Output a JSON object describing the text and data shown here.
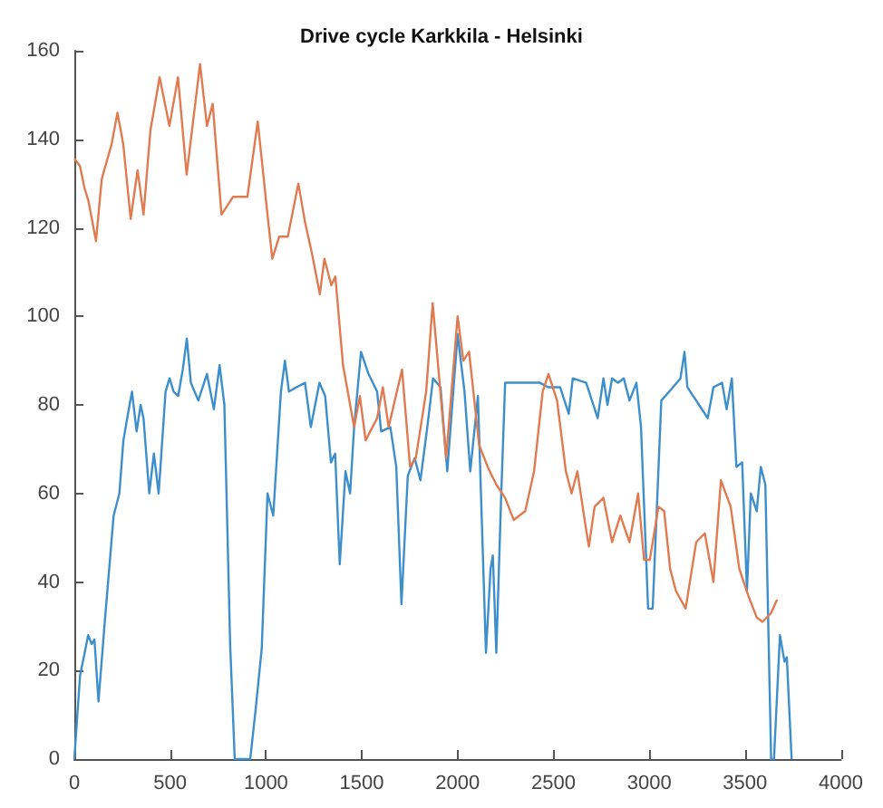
{
  "chart_data": {
    "type": "line",
    "title": "Drive cycle Karkkila - Helsinki",
    "xlim": [
      0,
      4000
    ],
    "xticks": [
      0,
      500,
      1000,
      1500,
      2000,
      2500,
      3000,
      3500,
      4000
    ],
    "ylim": [
      0,
      160
    ],
    "yticks": [
      0,
      20,
      40,
      60,
      80,
      100,
      120,
      140,
      160
    ],
    "grid": false,
    "marker": "none",
    "line_style": "solid",
    "series": [
      {
        "color": "#3d8fcc",
        "x": [
          0,
          30,
          54,
          72,
          90,
          105,
          126,
          157,
          205,
          235,
          256,
          280,
          301,
          325,
          346,
          361,
          391,
          415,
          440,
          476,
          497,
          518,
          542,
          566,
          587,
          608,
          647,
          692,
          728,
          758,
          783,
          813,
          837,
          918,
          948,
          978,
          1008,
          1038,
          1078,
          1099,
          1120,
          1159,
          1204,
          1234,
          1279,
          1309,
          1339,
          1361,
          1385,
          1415,
          1439,
          1460,
          1496,
          1535,
          1580,
          1601,
          1649,
          1680,
          1707,
          1740,
          1776,
          1806,
          1842,
          1872,
          1911,
          1946,
          2000,
          2036,
          2066,
          2106,
          2148,
          2172,
          2184,
          2202,
          2227,
          2248,
          2429,
          2474,
          2535,
          2580,
          2601,
          2671,
          2731,
          2761,
          2782,
          2806,
          2837,
          2867,
          2897,
          2933,
          2957,
          2994,
          3018,
          3063,
          3084,
          3124,
          3163,
          3184,
          3199,
          3260,
          3305,
          3335,
          3380,
          3404,
          3431,
          3455,
          3485,
          3510,
          3530,
          3561,
          3582,
          3606,
          3636,
          3651,
          3682,
          3706,
          3718,
          3743
        ],
        "values": [
          0,
          19,
          24,
          28,
          26,
          27,
          13,
          30,
          55,
          60,
          72,
          78,
          83,
          74,
          80,
          77,
          60,
          69,
          60,
          83,
          86,
          83,
          82,
          88,
          95,
          85,
          81,
          87,
          79,
          89,
          80,
          26,
          0,
          0,
          12,
          25,
          60,
          55,
          83,
          90,
          83,
          84,
          85,
          75,
          85,
          82,
          67,
          69,
          44,
          65,
          60,
          75,
          92,
          87,
          83,
          74,
          75,
          66,
          35,
          64,
          68,
          63,
          75,
          86,
          84,
          65,
          96,
          83,
          65,
          82,
          24,
          43,
          46,
          24,
          59,
          85,
          85,
          84,
          84,
          78,
          86,
          85,
          77,
          86,
          80,
          86,
          85,
          86,
          81,
          85,
          75,
          34,
          34,
          81,
          82,
          84,
          86,
          92,
          84,
          80,
          77,
          84,
          85,
          79,
          86,
          66,
          67,
          38,
          60,
          56,
          66,
          62,
          0,
          0,
          28,
          22,
          23,
          0
        ]
      },
      {
        "color": "#e07a50",
        "x": [
          0,
          29,
          53,
          74,
          113,
          143,
          195,
          225,
          255,
          294,
          330,
          361,
          397,
          445,
          496,
          541,
          586,
          656,
          692,
          722,
          768,
          828,
          903,
          957,
          1008,
          1033,
          1069,
          1114,
          1169,
          1205,
          1241,
          1281,
          1305,
          1341,
          1362,
          1402,
          1460,
          1490,
          1520,
          1580,
          1610,
          1640,
          1710,
          1752,
          1782,
          1836,
          1870,
          1940,
          2000,
          2030,
          2060,
          2112,
          2157,
          2202,
          2248,
          2293,
          2353,
          2399,
          2444,
          2474,
          2519,
          2565,
          2595,
          2625,
          2670,
          2685,
          2715,
          2761,
          2806,
          2849,
          2897,
          2942,
          2973,
          3003,
          3048,
          3078,
          3109,
          3139,
          3190,
          3245,
          3290,
          3335,
          3374,
          3425,
          3470,
          3516,
          3561,
          3591,
          3636,
          3667
        ],
        "values": [
          135.6,
          134,
          129,
          126,
          117,
          131,
          139,
          146,
          139,
          122,
          133,
          123,
          142,
          154,
          143,
          154,
          132,
          157,
          143,
          148,
          123,
          127,
          127,
          144,
          123,
          113,
          118,
          118,
          130,
          121,
          114,
          105,
          113,
          107,
          109,
          89,
          75,
          82,
          72,
          77,
          84,
          75,
          88,
          66,
          68,
          83,
          103,
          68,
          100,
          90,
          92,
          71,
          66,
          62,
          59,
          54,
          56,
          65,
          83,
          87,
          81,
          65,
          60,
          65,
          52,
          48,
          57,
          59,
          49,
          55,
          49,
          60,
          45,
          45,
          57,
          56,
          43,
          38,
          34,
          49,
          51,
          40,
          63,
          57,
          43,
          37,
          32,
          31,
          33,
          36
        ]
      }
    ]
  }
}
